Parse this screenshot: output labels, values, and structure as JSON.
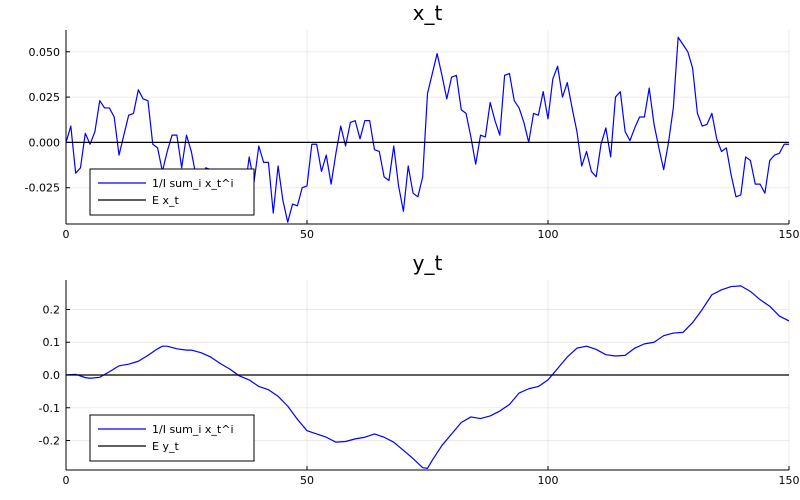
{
  "chart_data": [
    {
      "type": "line",
      "title": "x_t",
      "xlim": [
        0,
        150
      ],
      "ylim": [
        -0.045,
        0.062
      ],
      "xticks": [
        0,
        50,
        100,
        150
      ],
      "xtick_labels": [
        "0",
        "50",
        "100",
        "150"
      ],
      "yticks": [
        -0.025,
        0.0,
        0.025,
        0.05
      ],
      "ytick_labels": [
        "-0.025",
        "0.000",
        "0.025",
        "0.050"
      ],
      "grid": true,
      "legend_position": "bottom-left",
      "colors": {
        "series": "#0000ff",
        "reference": "#000000"
      },
      "series": [
        {
          "name": "1/I sum_i x_t^i",
          "color": "#0000ff",
          "x_start": 0,
          "x_step": 1,
          "values": [
            0.0,
            0.009,
            -0.017,
            -0.014,
            0.005,
            -0.001,
            0.006,
            0.023,
            0.019,
            0.019,
            0.014,
            -0.007,
            0.004,
            0.015,
            0.016,
            0.029,
            0.024,
            0.023,
            -0.001,
            -0.003,
            -0.016,
            -0.005,
            0.004,
            0.004,
            -0.014,
            0.004,
            -0.005,
            -0.019,
            -0.024,
            -0.014,
            -0.015,
            -0.019,
            -0.015,
            -0.022,
            -0.016,
            -0.018,
            -0.015,
            -0.029,
            -0.008,
            -0.022,
            -0.002,
            -0.011,
            -0.011,
            -0.039,
            -0.013,
            -0.032,
            -0.044,
            -0.034,
            -0.035,
            -0.025,
            -0.024,
            -0.001,
            -0.001,
            -0.016,
            -0.007,
            -0.023,
            -0.006,
            0.009,
            -0.002,
            0.011,
            0.012,
            0.002,
            0.012,
            0.012,
            -0.004,
            -0.005,
            -0.019,
            -0.021,
            -0.002,
            -0.024,
            -0.038,
            -0.013,
            -0.028,
            -0.03,
            -0.019,
            0.027,
            0.038,
            0.049,
            0.037,
            0.024,
            0.036,
            0.037,
            0.018,
            0.016,
            0.003,
            -0.012,
            0.004,
            0.003,
            0.022,
            0.012,
            0.004,
            0.037,
            0.038,
            0.023,
            0.019,
            0.011,
            0.0,
            0.016,
            0.015,
            0.028,
            0.013,
            0.035,
            0.042,
            0.025,
            0.033,
            0.019,
            0.006,
            -0.013,
            -0.005,
            -0.016,
            -0.019,
            -0.001,
            0.008,
            -0.008,
            0.025,
            0.028,
            0.006,
            0.001,
            0.008,
            0.014,
            0.014,
            0.03,
            0.01,
            -0.003,
            -0.015,
            0.0,
            0.019,
            0.058,
            0.054,
            0.05,
            0.041,
            0.016,
            0.009,
            0.01,
            0.016,
            0.002,
            -0.005,
            -0.003,
            -0.018,
            -0.03,
            -0.029,
            -0.008,
            -0.01,
            -0.023,
            -0.023,
            -0.028,
            -0.01,
            -0.007,
            -0.006,
            -0.001,
            -0.001
          ]
        },
        {
          "name": "E x_t",
          "color": "#000000",
          "x": [
            0,
            150
          ],
          "values": [
            0.0,
            0.0
          ]
        }
      ]
    },
    {
      "type": "line",
      "title": "y_t",
      "xlim": [
        0,
        150
      ],
      "ylim": [
        -0.29,
        0.29
      ],
      "xticks": [
        0,
        50,
        100,
        150
      ],
      "xtick_labels": [
        "0",
        "50",
        "100",
        "150"
      ],
      "yticks": [
        -0.2,
        -0.1,
        0.0,
        0.1,
        0.2
      ],
      "ytick_labels": [
        "-0.2",
        "-0.1",
        "0.0",
        "0.1",
        "0.2"
      ],
      "grid": true,
      "legend_position": "bottom-left",
      "colors": {
        "series": "#0000ff",
        "reference": "#000000"
      },
      "series": [
        {
          "name": "1/I sum_i x_t^i",
          "color": "#0000ff",
          "x": [
            0,
            2,
            4,
            5,
            7,
            9,
            11,
            13,
            15,
            17,
            19,
            20,
            21,
            23,
            25,
            26,
            28,
            30,
            32,
            34,
            36,
            38,
            40,
            42,
            44,
            46,
            48,
            50,
            52,
            54,
            56,
            58,
            60,
            62,
            64,
            66,
            68,
            70,
            72,
            74,
            75,
            76,
            78,
            80,
            82,
            84,
            86,
            88,
            90,
            92,
            94,
            96,
            98,
            100,
            102,
            104,
            106,
            108,
            110,
            112,
            114,
            116,
            118,
            120,
            122,
            124,
            126,
            128,
            130,
            132,
            134,
            136,
            138,
            140,
            142,
            144,
            146,
            148,
            150
          ],
          "values": [
            0.0,
            0.002,
            -0.008,
            -0.01,
            -0.007,
            0.01,
            0.028,
            0.033,
            0.042,
            0.06,
            0.08,
            0.088,
            0.088,
            0.08,
            0.076,
            0.076,
            0.068,
            0.055,
            0.035,
            0.018,
            -0.003,
            -0.015,
            -0.035,
            -0.045,
            -0.065,
            -0.095,
            -0.135,
            -0.17,
            -0.18,
            -0.19,
            -0.205,
            -0.203,
            -0.195,
            -0.19,
            -0.18,
            -0.19,
            -0.205,
            -0.23,
            -0.255,
            -0.283,
            -0.285,
            -0.26,
            -0.215,
            -0.18,
            -0.145,
            -0.128,
            -0.133,
            -0.125,
            -0.11,
            -0.09,
            -0.055,
            -0.042,
            -0.035,
            -0.015,
            0.02,
            0.055,
            0.082,
            0.088,
            0.078,
            0.062,
            0.058,
            0.06,
            0.082,
            0.095,
            0.1,
            0.12,
            0.128,
            0.13,
            0.16,
            0.2,
            0.245,
            0.26,
            0.27,
            0.272,
            0.255,
            0.23,
            0.21,
            0.18,
            0.165
          ]
        },
        {
          "name": "E y_t",
          "color": "#000000",
          "x": [
            0,
            150
          ],
          "values": [
            0.0,
            0.0
          ]
        }
      ]
    }
  ]
}
